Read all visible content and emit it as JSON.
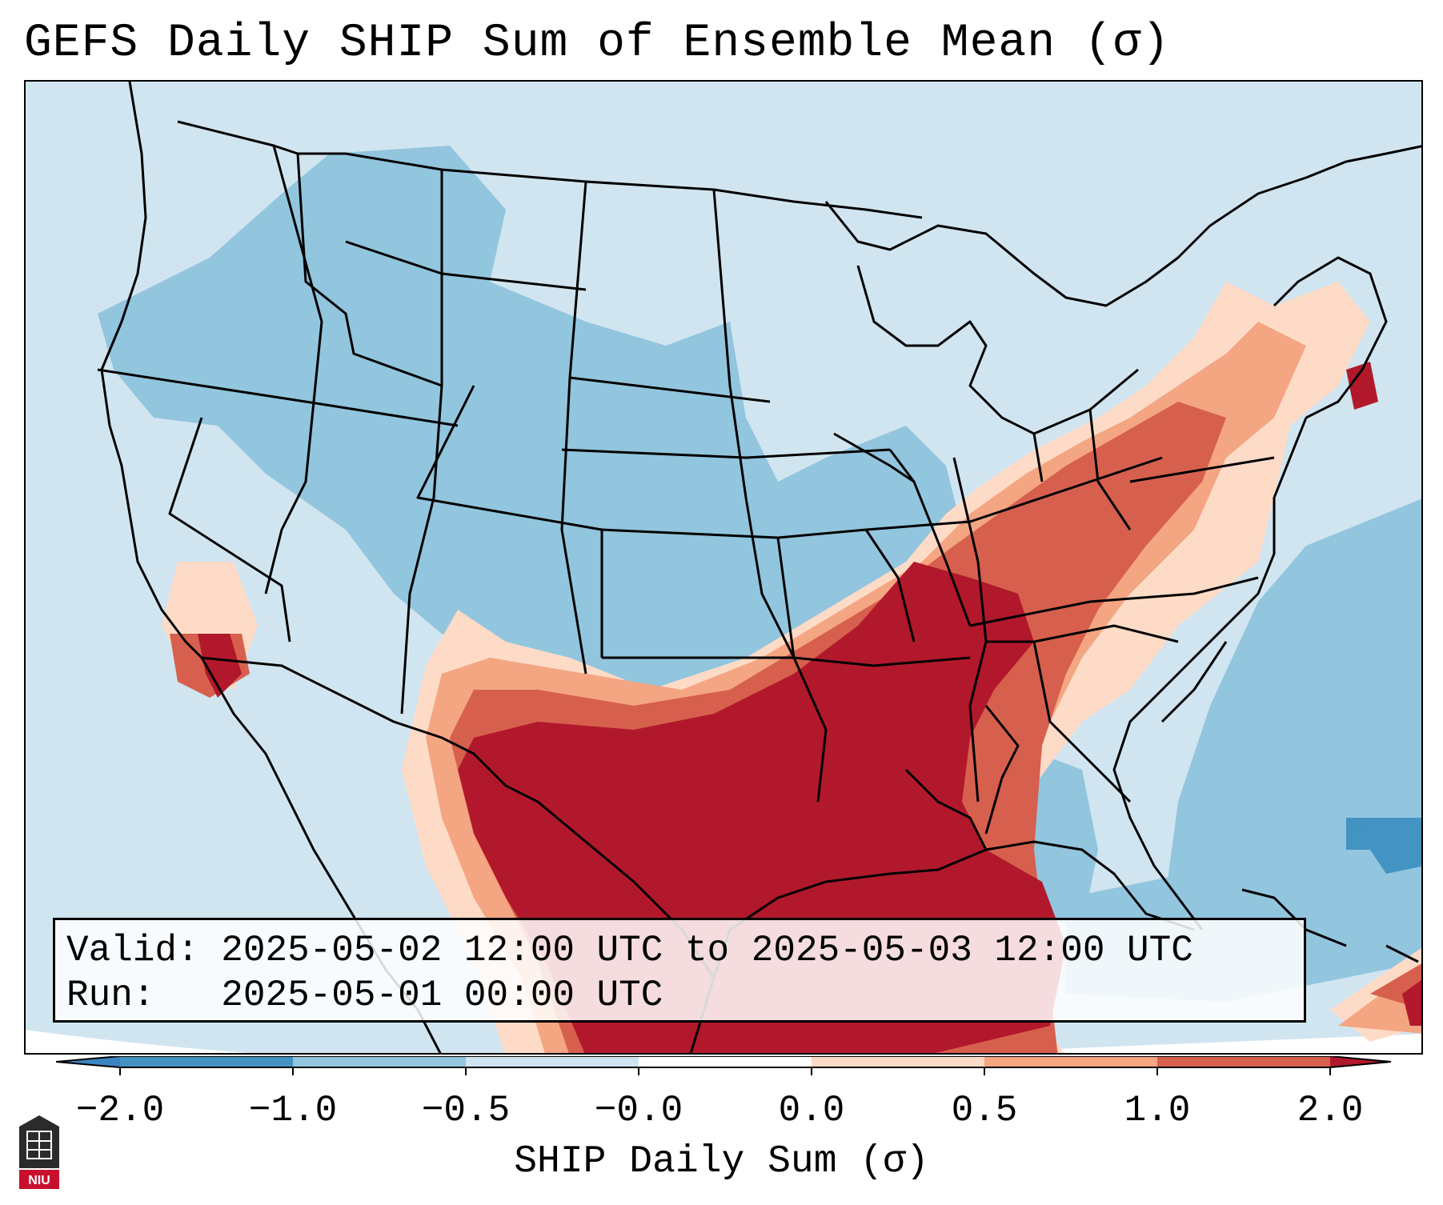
{
  "title": "GEFS Daily SHIP Sum of Ensemble Mean (σ)",
  "info": {
    "valid_label": "Valid:",
    "valid_value": "2025-05-02 12:00 UTC to 2025-05-03 12:00 UTC",
    "run_label": "Run:",
    "run_value": "2025-05-01 00:00 UTC"
  },
  "colorbar": {
    "label": "SHIP Daily Sum (σ)",
    "ticks": [
      "−2.0",
      "−1.0",
      "−0.5",
      "−0.0",
      "0.0",
      "0.5",
      "1.0",
      "2.0"
    ],
    "colors": {
      "extend_low": "#3a84c1",
      "bin_m2_m1": "#4393c3",
      "bin_m1_m05": "#92c5de",
      "bin_m05_0": "#d1e5f0",
      "bin_0_05": "#fddbc7",
      "bin_05_1": "#f4a582",
      "bin_1_2": "#d6604d",
      "extend_high": "#b2182b"
    }
  },
  "map": {
    "projection": "Lambert conformal — CONUS",
    "background_color": "#d1e5f0"
  },
  "logo": {
    "text": "NIU",
    "icon": "university-seal-icon"
  }
}
